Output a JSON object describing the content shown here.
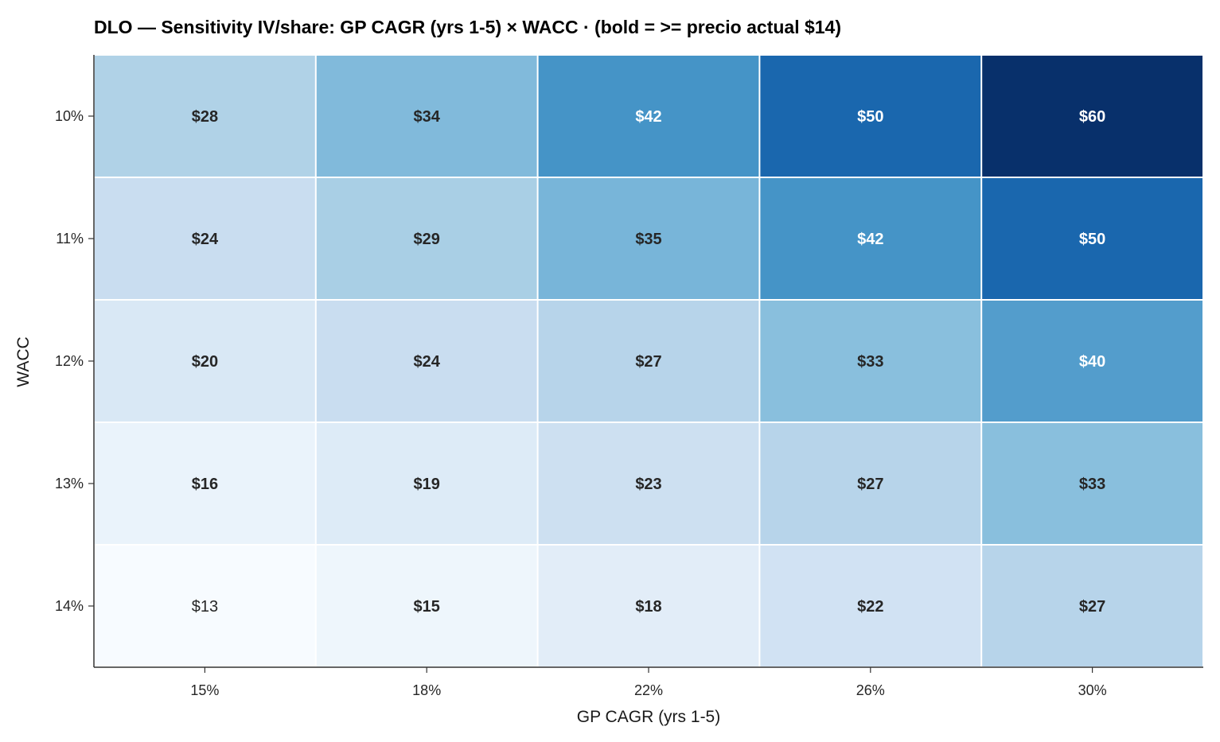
{
  "chart_data": {
    "type": "heatmap",
    "title": "DLO — Sensitivity IV/share: GP CAGR (yrs 1-5) × WACC · (bold = >= precio actual $14)",
    "xlabel": "GP CAGR (yrs 1-5)",
    "ylabel": "WACC",
    "x_categories": [
      "15%",
      "18%",
      "22%",
      "26%",
      "30%"
    ],
    "y_categories": [
      "10%",
      "11%",
      "12%",
      "13%",
      "14%"
    ],
    "values": [
      [
        28,
        34,
        42,
        50,
        60
      ],
      [
        24,
        29,
        35,
        42,
        50
      ],
      [
        20,
        24,
        27,
        33,
        40
      ],
      [
        16,
        19,
        23,
        27,
        33
      ],
      [
        13,
        15,
        18,
        22,
        27
      ]
    ],
    "value_prefix": "$",
    "bold_threshold": 14,
    "colormap": "Blues",
    "color_range": [
      13,
      60
    ],
    "colormap_stops": [
      "#f7fbff",
      "#deebf7",
      "#c6dbef",
      "#9ecae1",
      "#6baed6",
      "#4292c6",
      "#2171b5",
      "#08519c",
      "#08306b"
    ],
    "cell_border_color": "#ffffff",
    "dark_text_color": "#262626",
    "light_text_color": "#ffffff",
    "axis_color": "#333333",
    "grid": false,
    "legend": "none"
  }
}
